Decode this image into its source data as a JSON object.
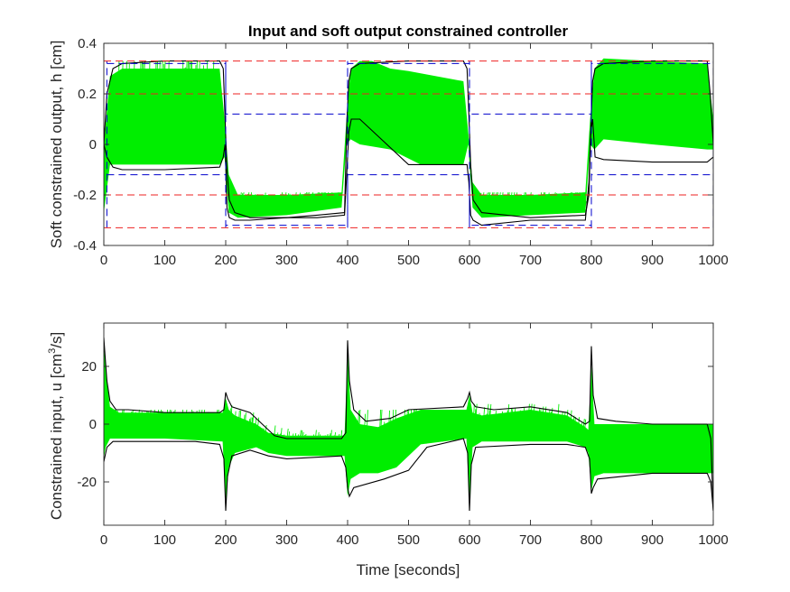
{
  "figure": {
    "title": "Input and soft output constrained controller"
  },
  "chart_data": [
    {
      "type": "line",
      "title": "Input and soft output constrained controller",
      "xlabel": "",
      "ylabel": "Soft constrained output, h [cm]",
      "xlim": [
        0,
        1000
      ],
      "ylim": [
        -0.4,
        0.4
      ],
      "xticks": [
        0,
        100,
        200,
        300,
        400,
        500,
        600,
        700,
        800,
        900,
        1000
      ],
      "xtick_labels": [
        "0",
        "100",
        "200",
        "300",
        "400",
        "500",
        "600",
        "700",
        "800",
        "900",
        "1000"
      ],
      "yticks": [
        -0.4,
        -0.2,
        0,
        0.2,
        0.4
      ],
      "ytick_labels": [
        "-0.4",
        "-0.2",
        "0",
        "0.2",
        "0.4"
      ],
      "grid": false,
      "colors": {
        "bands": "#00ee00",
        "envelope": "#000000",
        "reference": "#0000cc",
        "constraints": "#ee2222"
      },
      "series": [
        {
          "style": "green band",
          "band_upper": {
            "x": [
              0,
              10,
              30,
              100,
              190,
              198,
              205,
              220,
              300,
              390,
              398,
              405,
              420,
              440,
              470,
              500,
              590,
              598,
              605,
              620,
              700,
              790,
              798,
              805,
              820,
              900,
              990,
              1000
            ],
            "y": [
              0.0,
              0.27,
              0.3,
              0.3,
              0.3,
              0.1,
              -0.12,
              -0.2,
              -0.2,
              -0.19,
              0.1,
              0.3,
              0.33,
              0.33,
              0.3,
              0.29,
              0.25,
              0.05,
              -0.15,
              -0.2,
              -0.2,
              -0.19,
              0.1,
              0.3,
              0.34,
              0.33,
              0.32,
              0.1
            ]
          },
          "band_lower": {
            "x": [
              0,
              10,
              30,
              100,
              190,
              198,
              205,
              220,
              300,
              390,
              398,
              405,
              420,
              470,
              520,
              590,
              598,
              605,
              620,
              700,
              790,
              798,
              805,
              820,
              900,
              990,
              1000
            ],
            "y": [
              -0.27,
              -0.08,
              -0.08,
              -0.08,
              -0.08,
              -0.05,
              -0.27,
              -0.29,
              -0.28,
              -0.25,
              0.0,
              0.02,
              0.0,
              -0.02,
              -0.08,
              -0.08,
              0.0,
              -0.25,
              -0.29,
              -0.28,
              -0.27,
              0.0,
              -0.02,
              0.02,
              0.0,
              -0.02,
              -0.02
            ]
          },
          "spikes": [
            {
              "x": [
                20,
                180
              ],
              "y": [
                0.24,
                0.33
              ]
            },
            {
              "x": [
                210,
                390
              ],
              "y": [
                -0.32,
                -0.19
              ]
            },
            {
              "x": [
                400,
                590
              ],
              "y": [
                -0.08,
                0.18
              ]
            },
            {
              "x": [
                610,
                790
              ],
              "y": [
                -0.32,
                -0.19
              ]
            },
            {
              "x": [
                800,
                990
              ],
              "y": [
                -0.02,
                0.14
              ]
            }
          ]
        },
        {
          "style": "black upper envelope",
          "x": [
            0,
            5,
            15,
            30,
            100,
            190,
            196,
            199,
            202,
            206,
            215,
            240,
            300,
            350,
            395,
            399,
            402,
            406,
            420,
            500,
            590,
            596,
            599,
            602,
            606,
            620,
            700,
            790,
            796,
            799,
            802,
            806,
            820,
            900,
            990,
            995,
            1000
          ],
          "y": [
            0.0,
            0.2,
            0.3,
            0.32,
            0.33,
            0.33,
            0.3,
            0.1,
            -0.1,
            -0.22,
            -0.27,
            -0.29,
            -0.29,
            -0.28,
            -0.27,
            0.1,
            0.25,
            0.3,
            0.32,
            0.33,
            0.33,
            0.3,
            0.12,
            -0.08,
            -0.22,
            -0.27,
            -0.29,
            -0.28,
            -0.2,
            0.05,
            0.25,
            0.3,
            0.32,
            0.33,
            0.33,
            0.2,
            0.0
          ]
        },
        {
          "style": "black lower envelope",
          "x": [
            0,
            5,
            15,
            30,
            100,
            190,
            196,
            199,
            202,
            206,
            215,
            240,
            300,
            350,
            395,
            399,
            402,
            406,
            420,
            500,
            590,
            596,
            599,
            602,
            606,
            620,
            700,
            790,
            796,
            799,
            802,
            806,
            820,
            900,
            990,
            1000
          ],
          "y": [
            0.0,
            -0.05,
            -0.09,
            -0.1,
            -0.1,
            -0.09,
            -0.05,
            0.0,
            -0.25,
            -0.29,
            -0.3,
            -0.3,
            -0.29,
            -0.29,
            -0.28,
            -0.1,
            0.05,
            0.1,
            0.1,
            -0.08,
            -0.08,
            -0.08,
            -0.15,
            -0.28,
            -0.3,
            -0.32,
            -0.3,
            -0.3,
            -0.15,
            0.05,
            0.1,
            -0.05,
            -0.06,
            -0.07,
            -0.07,
            -0.05
          ]
        },
        {
          "style": "blue dashed reference (upper)",
          "x": [
            5,
            200,
            200,
            400,
            400,
            600,
            600,
            800,
            800,
            1000
          ],
          "y": [
            0.32,
            0.32,
            0.12,
            0.12,
            0.32,
            0.32,
            0.12,
            0.12,
            0.32,
            0.32
          ]
        },
        {
          "style": "blue dashed reference (lower)",
          "x": [
            5,
            200,
            200,
            400,
            400,
            600,
            600,
            800,
            800,
            1000
          ],
          "y": [
            -0.12,
            -0.12,
            -0.32,
            -0.32,
            -0.12,
            -0.12,
            -0.32,
            -0.32,
            -0.12,
            -0.12
          ]
        },
        {
          "style": "blue dashed reference verticals",
          "vlines": [
            5,
            200,
            400,
            600,
            800,
            1000
          ],
          "vrange": [
            -0.33,
            0.33
          ]
        },
        {
          "style": "red dashed soft constraints",
          "hlines": [
            0.33,
            0.2,
            -0.2,
            -0.33
          ]
        }
      ]
    },
    {
      "type": "line",
      "title": "",
      "xlabel": "Time [seconds]",
      "ylabel": "Constrained input, u [cm³/s]",
      "ylabel_parts": [
        "Constrained input, u [cm",
        "3",
        "/s]"
      ],
      "xlim": [
        0,
        1000
      ],
      "ylim": [
        -35,
        35
      ],
      "xticks": [
        0,
        100,
        200,
        300,
        400,
        500,
        600,
        700,
        800,
        900,
        1000
      ],
      "xtick_labels": [
        "0",
        "100",
        "200",
        "300",
        "400",
        "500",
        "600",
        "700",
        "800",
        "900",
        "1000"
      ],
      "yticks": [
        -20,
        0,
        20
      ],
      "ytick_labels": [
        "-20",
        "0",
        "20"
      ],
      "grid": false,
      "series": [
        {
          "style": "green band",
          "band_upper": {
            "x": [
              0,
              3,
              10,
              25,
              100,
              195,
              200,
              205,
              215,
              250,
              270,
              300,
              350,
              395,
              400,
              405,
              420,
              450,
              480,
              520,
              595,
              600,
              605,
              620,
              700,
              760,
              790,
              795,
              800,
              805,
              820,
              900,
              1000
            ],
            "y": [
              28,
              20,
              6,
              4,
              4,
              4,
              9,
              5,
              3,
              0,
              -3,
              -4,
              -4,
              -4,
              25,
              5,
              0,
              -1,
              2,
              5,
              5,
              10,
              4,
              3,
              5,
              3,
              -1,
              -2,
              20,
              0,
              0,
              0,
              0
            ]
          },
          "band_lower": {
            "x": [
              0,
              3,
              10,
              25,
              100,
              195,
              200,
              205,
              215,
              250,
              270,
              300,
              350,
              395,
              400,
              405,
              420,
              450,
              480,
              520,
              595,
              600,
              605,
              620,
              700,
              760,
              790,
              795,
              800,
              805,
              820,
              900,
              1000
            ],
            "y": [
              -12,
              -8,
              -5,
              -5,
              -5,
              -6,
              -28,
              -15,
              -10,
              -8,
              -10,
              -11,
              -11,
              -11,
              -25,
              -19,
              -17,
              -17,
              -15,
              -7,
              -5,
              -28,
              -8,
              -6,
              -6,
              -6,
              -8,
              -10,
              -23,
              -18,
              -17,
              -17,
              -17
            ]
          },
          "spikes": [
            {
              "x": [
                5,
                195
              ],
              "y": [
                -6,
                5
              ]
            },
            {
              "x": [
                205,
                395
              ],
              "y": [
                -11,
                9
              ]
            },
            {
              "x": [
                405,
                595
              ],
              "y": [
                -18,
                5
              ]
            },
            {
              "x": [
                605,
                795
              ],
              "y": [
                -7,
                7
              ]
            },
            {
              "x": [
                805,
                995
              ],
              "y": [
                -18,
                -3
              ]
            }
          ]
        },
        {
          "style": "black upper envelope",
          "x": [
            0,
            2,
            5,
            10,
            20,
            40,
            100,
            190,
            197,
            200,
            203,
            210,
            240,
            260,
            280,
            300,
            390,
            397,
            400,
            403,
            410,
            430,
            470,
            500,
            590,
            597,
            600,
            603,
            610,
            640,
            700,
            760,
            790,
            797,
            800,
            803,
            810,
            840,
            900,
            990,
            996,
            1000
          ],
          "y": [
            30,
            24,
            15,
            8,
            5,
            5,
            4,
            4,
            5,
            11,
            9,
            6,
            4,
            0,
            -4,
            -5,
            -5,
            -3,
            29,
            15,
            5,
            1,
            2,
            5,
            6,
            9,
            11,
            8,
            6,
            5,
            6,
            4,
            0,
            1,
            27,
            10,
            2,
            1,
            0,
            0,
            -5,
            -30
          ]
        },
        {
          "style": "black lower envelope",
          "x": [
            0,
            5,
            15,
            50,
            150,
            190,
            197,
            200,
            203,
            210,
            240,
            270,
            300,
            390,
            397,
            400,
            403,
            410,
            460,
            500,
            530,
            590,
            597,
            600,
            603,
            610,
            700,
            760,
            790,
            797,
            800,
            803,
            810,
            900,
            990,
            996,
            1000
          ],
          "y": [
            -13,
            -8,
            -6,
            -6,
            -6,
            -7,
            -12,
            -30,
            -18,
            -11,
            -9,
            -11,
            -12,
            -11,
            -15,
            -22,
            -25,
            -22,
            -19,
            -16,
            -8,
            -5,
            -10,
            -30,
            -14,
            -8,
            -7,
            -7,
            -8,
            -12,
            -24,
            -22,
            -19,
            -17,
            -17,
            -20,
            -30
          ]
        }
      ]
    }
  ]
}
